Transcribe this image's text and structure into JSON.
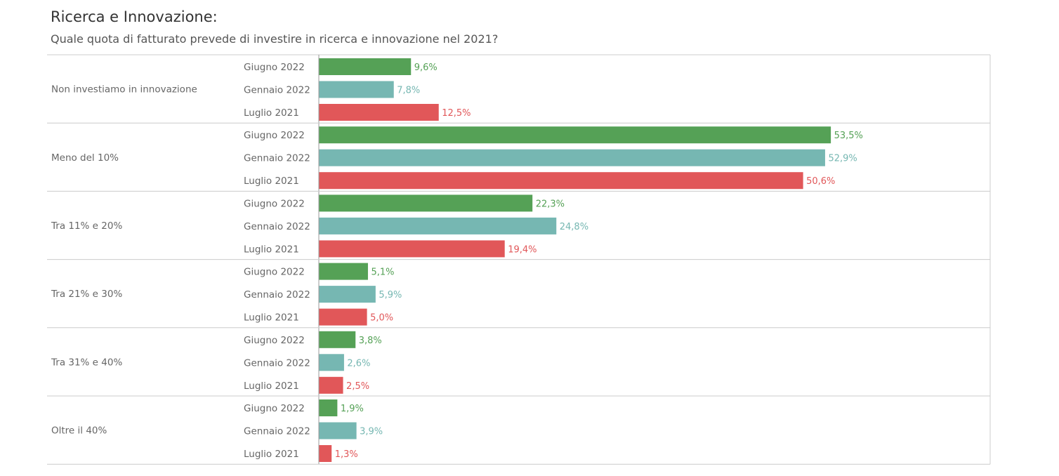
{
  "title": "Ricerca e Innovazione",
  "title_suffix": ":",
  "subtitle": "Quale quota di fatturato prevede di investire in ricerca e innovazione nel 2021?",
  "colors": {
    "Giugno 2022": "#55a156",
    "Gennaio 2022": "#76b7b2",
    "Luglio 2021": "#e15759"
  },
  "chart_data": {
    "type": "bar",
    "orientation": "horizontal",
    "groups": [
      "Non investiamo in innovazione",
      "Meno del 10%",
      "Tra 11% e 20%",
      "Tra 21% e 30%",
      "Tra 31% e 40%",
      "Oltre il 40%"
    ],
    "periods": [
      "Giugno 2022",
      "Gennaio 2022",
      "Luglio 2021"
    ],
    "values": [
      [
        9.6,
        7.8,
        12.5
      ],
      [
        53.5,
        52.9,
        50.6
      ],
      [
        22.3,
        24.8,
        19.4
      ],
      [
        5.1,
        5.9,
        5.0
      ],
      [
        3.8,
        2.6,
        2.5
      ],
      [
        1.9,
        3.9,
        1.3
      ]
    ],
    "value_labels": [
      [
        "9,6%",
        "7,8%",
        "12,5%"
      ],
      [
        "53,5%",
        "52,9%",
        "50,6%"
      ],
      [
        "22,3%",
        "24,8%",
        "19,4%"
      ],
      [
        "5,1%",
        "5,9%",
        "5,0%"
      ],
      [
        "3,8%",
        "2,6%",
        "2,5%"
      ],
      [
        "1,9%",
        "3,9%",
        "1,3%"
      ]
    ],
    "xlim": [
      0,
      63
    ],
    "grid": false,
    "legend": "none"
  }
}
